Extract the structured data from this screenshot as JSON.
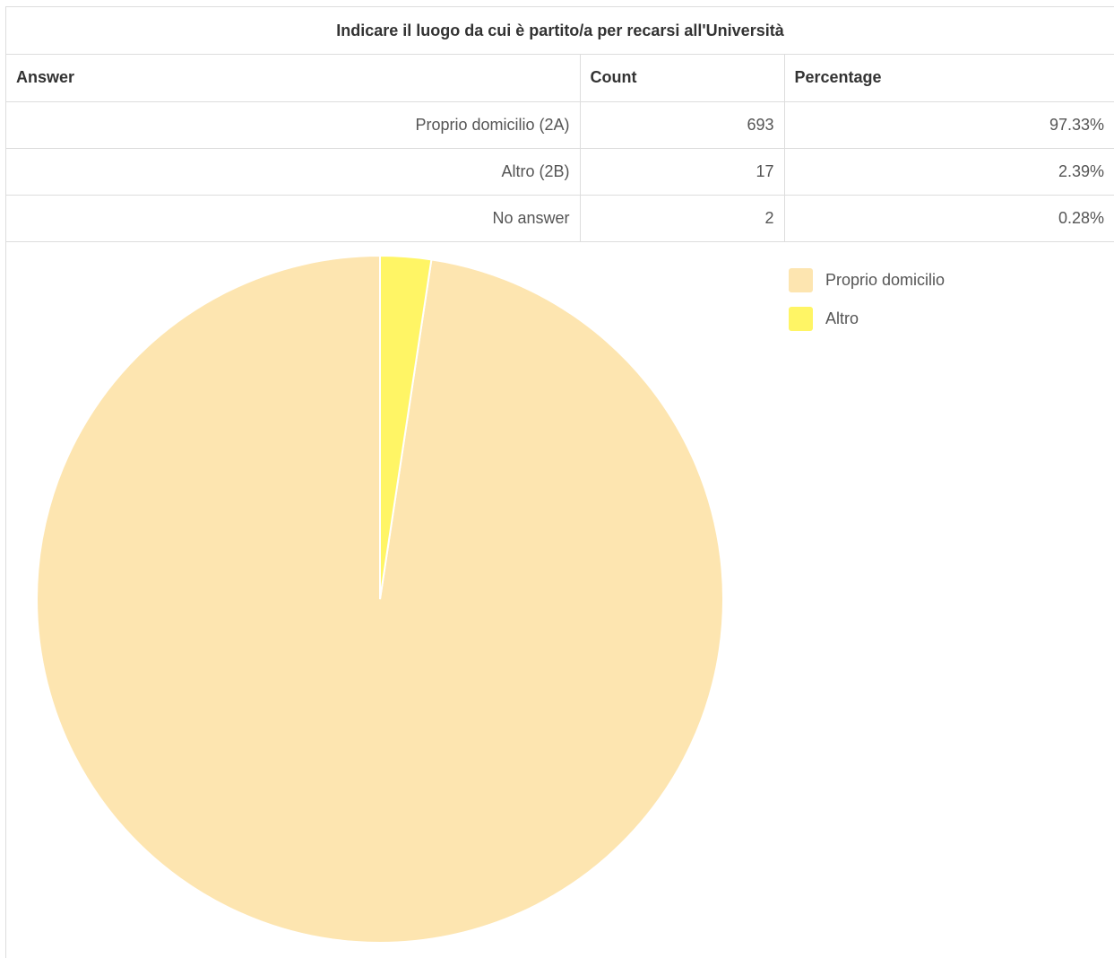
{
  "title": "Indicare il luogo da cui è partito/a per recarsi all'Università",
  "table": {
    "headers": [
      "Answer",
      "Count",
      "Percentage"
    ],
    "rows": [
      {
        "answer": "Proprio domicilio (2A)",
        "count": "693",
        "percentage": "97.33%"
      },
      {
        "answer": "Altro (2B)",
        "count": "17",
        "percentage": "2.39%"
      },
      {
        "answer": "No answer",
        "count": "2",
        "percentage": "0.28%"
      }
    ]
  },
  "legend": [
    {
      "label": "Proprio domicilio",
      "color": "#FDE5B0"
    },
    {
      "label": "Altro",
      "color": "#FFF565"
    }
  ],
  "chart_data": {
    "type": "pie",
    "title": "Indicare il luogo da cui è partito/a per recarsi all'Università",
    "categories": [
      "Proprio domicilio",
      "Altro"
    ],
    "values": [
      693,
      17
    ],
    "colors": [
      "#FDE5B0",
      "#FFF565"
    ],
    "legend_position": "top-right"
  }
}
